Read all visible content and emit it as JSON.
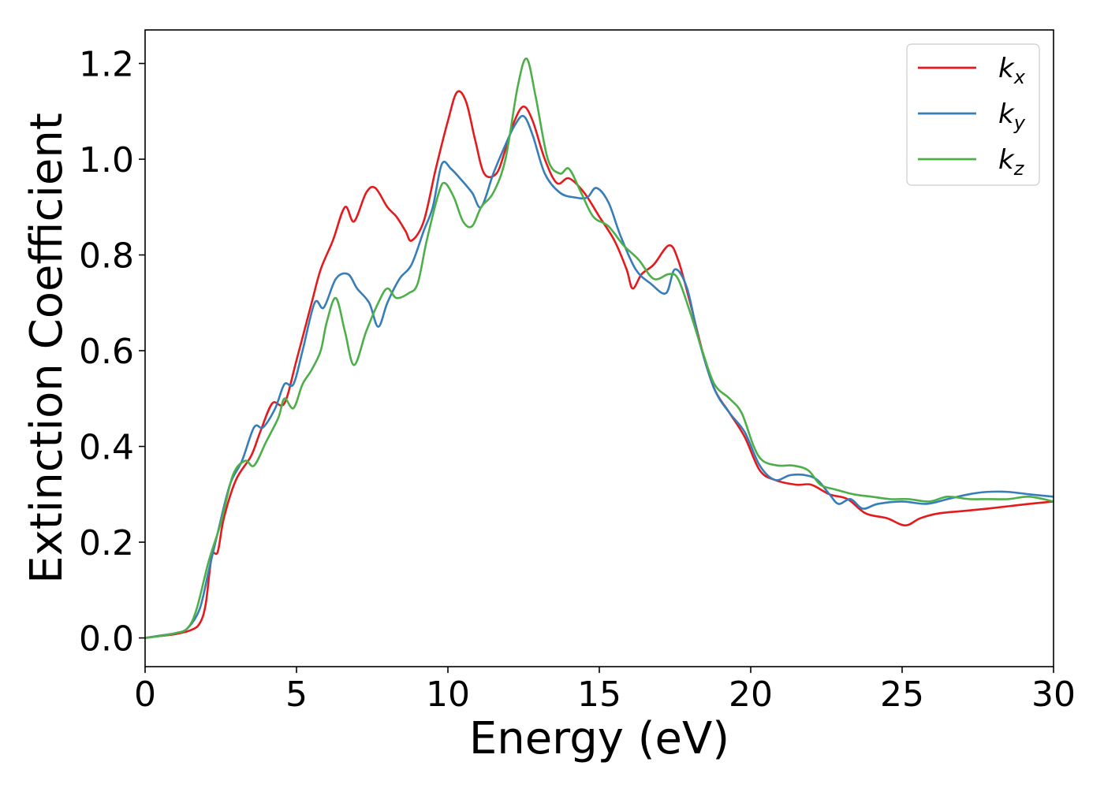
{
  "chart_data": {
    "type": "line",
    "xlabel": "Energy (eV)",
    "ylabel": "Extinction Coefficient",
    "xlim": [
      0,
      30
    ],
    "ylim": [
      -0.06,
      1.27
    ],
    "xticks": [
      0,
      5,
      10,
      15,
      20,
      25,
      30
    ],
    "xtick_labels": [
      "0",
      "5",
      "10",
      "15",
      "20",
      "25",
      "30"
    ],
    "yticks": [
      0.0,
      0.2,
      0.4,
      0.6,
      0.8,
      1.0,
      1.2
    ],
    "ytick_labels": [
      "0.0",
      "0.2",
      "0.4",
      "0.6",
      "0.8",
      "1.0",
      "1.2"
    ],
    "grid": false,
    "legend_position": "top-right",
    "series": [
      {
        "name": "kx",
        "label_main": "k",
        "label_sub": "x",
        "color": "#e41a1c",
        "points": [
          [
            0,
            0
          ],
          [
            0.5,
            0.004
          ],
          [
            1,
            0.008
          ],
          [
            1.5,
            0.016
          ],
          [
            1.8,
            0.03
          ],
          [
            2,
            0.07
          ],
          [
            2.2,
            0.17
          ],
          [
            2.4,
            0.18
          ],
          [
            2.6,
            0.25
          ],
          [
            3,
            0.33
          ],
          [
            3.5,
            0.38
          ],
          [
            3.8,
            0.43
          ],
          [
            4.2,
            0.49
          ],
          [
            4.6,
            0.49
          ],
          [
            5,
            0.58
          ],
          [
            5.5,
            0.7
          ],
          [
            5.8,
            0.77
          ],
          [
            6.2,
            0.83
          ],
          [
            6.6,
            0.9
          ],
          [
            6.9,
            0.87
          ],
          [
            7.3,
            0.93
          ],
          [
            7.6,
            0.94
          ],
          [
            8,
            0.9
          ],
          [
            8.3,
            0.88
          ],
          [
            8.6,
            0.85
          ],
          [
            8.8,
            0.83
          ],
          [
            9.2,
            0.87
          ],
          [
            9.6,
            0.98
          ],
          [
            10,
            1.08
          ],
          [
            10.3,
            1.14
          ],
          [
            10.6,
            1.12
          ],
          [
            10.9,
            1.04
          ],
          [
            11.2,
            0.97
          ],
          [
            11.6,
            0.97
          ],
          [
            11.9,
            1.02
          ],
          [
            12.2,
            1.08
          ],
          [
            12.5,
            1.11
          ],
          [
            12.8,
            1.08
          ],
          [
            13.2,
            1.0
          ],
          [
            13.6,
            0.95
          ],
          [
            14,
            0.96
          ],
          [
            14.5,
            0.93
          ],
          [
            15,
            0.88
          ],
          [
            15.5,
            0.83
          ],
          [
            15.9,
            0.77
          ],
          [
            16.1,
            0.73
          ],
          [
            16.4,
            0.76
          ],
          [
            16.8,
            0.78
          ],
          [
            17.3,
            0.82
          ],
          [
            17.6,
            0.79
          ],
          [
            18,
            0.7
          ],
          [
            18.4,
            0.6
          ],
          [
            18.8,
            0.52
          ],
          [
            19.3,
            0.47
          ],
          [
            19.8,
            0.42
          ],
          [
            20.3,
            0.35
          ],
          [
            20.8,
            0.33
          ],
          [
            21.5,
            0.32
          ],
          [
            22,
            0.32
          ],
          [
            22.6,
            0.3
          ],
          [
            23.2,
            0.29
          ],
          [
            23.8,
            0.26
          ],
          [
            24.5,
            0.25
          ],
          [
            25.1,
            0.235
          ],
          [
            25.6,
            0.25
          ],
          [
            26.2,
            0.26
          ],
          [
            27,
            0.265
          ],
          [
            27.8,
            0.27
          ],
          [
            28.5,
            0.275
          ],
          [
            29.2,
            0.28
          ],
          [
            30,
            0.285
          ]
        ]
      },
      {
        "name": "ky",
        "label_main": "k",
        "label_sub": "y",
        "color": "#377eb8",
        "points": [
          [
            0,
            0
          ],
          [
            0.5,
            0.005
          ],
          [
            1,
            0.01
          ],
          [
            1.4,
            0.02
          ],
          [
            1.8,
            0.06
          ],
          [
            2.1,
            0.14
          ],
          [
            2.4,
            0.22
          ],
          [
            2.8,
            0.32
          ],
          [
            3.2,
            0.37
          ],
          [
            3.6,
            0.44
          ],
          [
            3.9,
            0.44
          ],
          [
            4.3,
            0.48
          ],
          [
            4.6,
            0.53
          ],
          [
            4.9,
            0.53
          ],
          [
            5.2,
            0.6
          ],
          [
            5.6,
            0.7
          ],
          [
            5.9,
            0.69
          ],
          [
            6.3,
            0.75
          ],
          [
            6.7,
            0.76
          ],
          [
            7,
            0.73
          ],
          [
            7.4,
            0.7
          ],
          [
            7.7,
            0.65
          ],
          [
            8,
            0.7
          ],
          [
            8.4,
            0.75
          ],
          [
            8.8,
            0.78
          ],
          [
            9.2,
            0.85
          ],
          [
            9.5,
            0.9
          ],
          [
            9.8,
            0.99
          ],
          [
            10.1,
            0.98
          ],
          [
            10.4,
            0.96
          ],
          [
            10.8,
            0.93
          ],
          [
            11.1,
            0.9
          ],
          [
            11.5,
            0.97
          ],
          [
            11.9,
            1.03
          ],
          [
            12.2,
            1.07
          ],
          [
            12.5,
            1.09
          ],
          [
            12.8,
            1.05
          ],
          [
            13.2,
            0.97
          ],
          [
            13.7,
            0.93
          ],
          [
            14.2,
            0.92
          ],
          [
            14.6,
            0.92
          ],
          [
            14.9,
            0.94
          ],
          [
            15.3,
            0.91
          ],
          [
            15.7,
            0.84
          ],
          [
            16.2,
            0.77
          ],
          [
            16.7,
            0.74
          ],
          [
            17.2,
            0.72
          ],
          [
            17.5,
            0.77
          ],
          [
            17.9,
            0.73
          ],
          [
            18.3,
            0.62
          ],
          [
            18.8,
            0.52
          ],
          [
            19.3,
            0.47
          ],
          [
            19.8,
            0.43
          ],
          [
            20.3,
            0.36
          ],
          [
            20.8,
            0.33
          ],
          [
            21.3,
            0.34
          ],
          [
            21.8,
            0.34
          ],
          [
            22.2,
            0.33
          ],
          [
            22.6,
            0.3
          ],
          [
            22.9,
            0.28
          ],
          [
            23.3,
            0.29
          ],
          [
            23.7,
            0.27
          ],
          [
            24.2,
            0.28
          ],
          [
            25,
            0.285
          ],
          [
            25.8,
            0.28
          ],
          [
            26.5,
            0.29
          ],
          [
            27.2,
            0.3
          ],
          [
            27.8,
            0.305
          ],
          [
            28.5,
            0.305
          ],
          [
            29.2,
            0.3
          ],
          [
            30,
            0.295
          ]
        ]
      },
      {
        "name": "kz",
        "label_main": "k",
        "label_sub": "z",
        "color": "#4daf4a",
        "points": [
          [
            0,
            0
          ],
          [
            0.5,
            0.004
          ],
          [
            1,
            0.01
          ],
          [
            1.4,
            0.02
          ],
          [
            1.7,
            0.06
          ],
          [
            2.1,
            0.16
          ],
          [
            2.5,
            0.24
          ],
          [
            2.9,
            0.34
          ],
          [
            3.3,
            0.37
          ],
          [
            3.6,
            0.36
          ],
          [
            4,
            0.41
          ],
          [
            4.4,
            0.46
          ],
          [
            4.6,
            0.5
          ],
          [
            4.9,
            0.48
          ],
          [
            5.2,
            0.53
          ],
          [
            5.5,
            0.56
          ],
          [
            5.8,
            0.6
          ],
          [
            6,
            0.66
          ],
          [
            6.3,
            0.71
          ],
          [
            6.6,
            0.64
          ],
          [
            6.9,
            0.57
          ],
          [
            7.3,
            0.64
          ],
          [
            7.7,
            0.7
          ],
          [
            8,
            0.73
          ],
          [
            8.3,
            0.71
          ],
          [
            8.7,
            0.72
          ],
          [
            9,
            0.74
          ],
          [
            9.3,
            0.83
          ],
          [
            9.7,
            0.93
          ],
          [
            9.9,
            0.95
          ],
          [
            10.2,
            0.92
          ],
          [
            10.5,
            0.87
          ],
          [
            10.8,
            0.86
          ],
          [
            11.1,
            0.9
          ],
          [
            11.5,
            0.93
          ],
          [
            11.9,
            1.0
          ],
          [
            12.3,
            1.15
          ],
          [
            12.6,
            1.21
          ],
          [
            12.9,
            1.13
          ],
          [
            13.3,
            1.0
          ],
          [
            13.7,
            0.97
          ],
          [
            14,
            0.98
          ],
          [
            14.4,
            0.93
          ],
          [
            14.8,
            0.88
          ],
          [
            15.3,
            0.86
          ],
          [
            15.8,
            0.82
          ],
          [
            16.3,
            0.79
          ],
          [
            16.8,
            0.75
          ],
          [
            17.3,
            0.76
          ],
          [
            17.6,
            0.75
          ],
          [
            18,
            0.68
          ],
          [
            18.4,
            0.6
          ],
          [
            18.8,
            0.53
          ],
          [
            19.3,
            0.5
          ],
          [
            19.7,
            0.47
          ],
          [
            20.1,
            0.4
          ],
          [
            20.4,
            0.37
          ],
          [
            20.9,
            0.36
          ],
          [
            21.4,
            0.36
          ],
          [
            21.9,
            0.35
          ],
          [
            22.3,
            0.32
          ],
          [
            22.8,
            0.31
          ],
          [
            23.4,
            0.3
          ],
          [
            24,
            0.295
          ],
          [
            24.6,
            0.29
          ],
          [
            25.2,
            0.29
          ],
          [
            25.9,
            0.285
          ],
          [
            26.5,
            0.295
          ],
          [
            27.2,
            0.29
          ],
          [
            27.8,
            0.29
          ],
          [
            28.5,
            0.29
          ],
          [
            29.2,
            0.295
          ],
          [
            30,
            0.285
          ]
        ]
      }
    ]
  }
}
